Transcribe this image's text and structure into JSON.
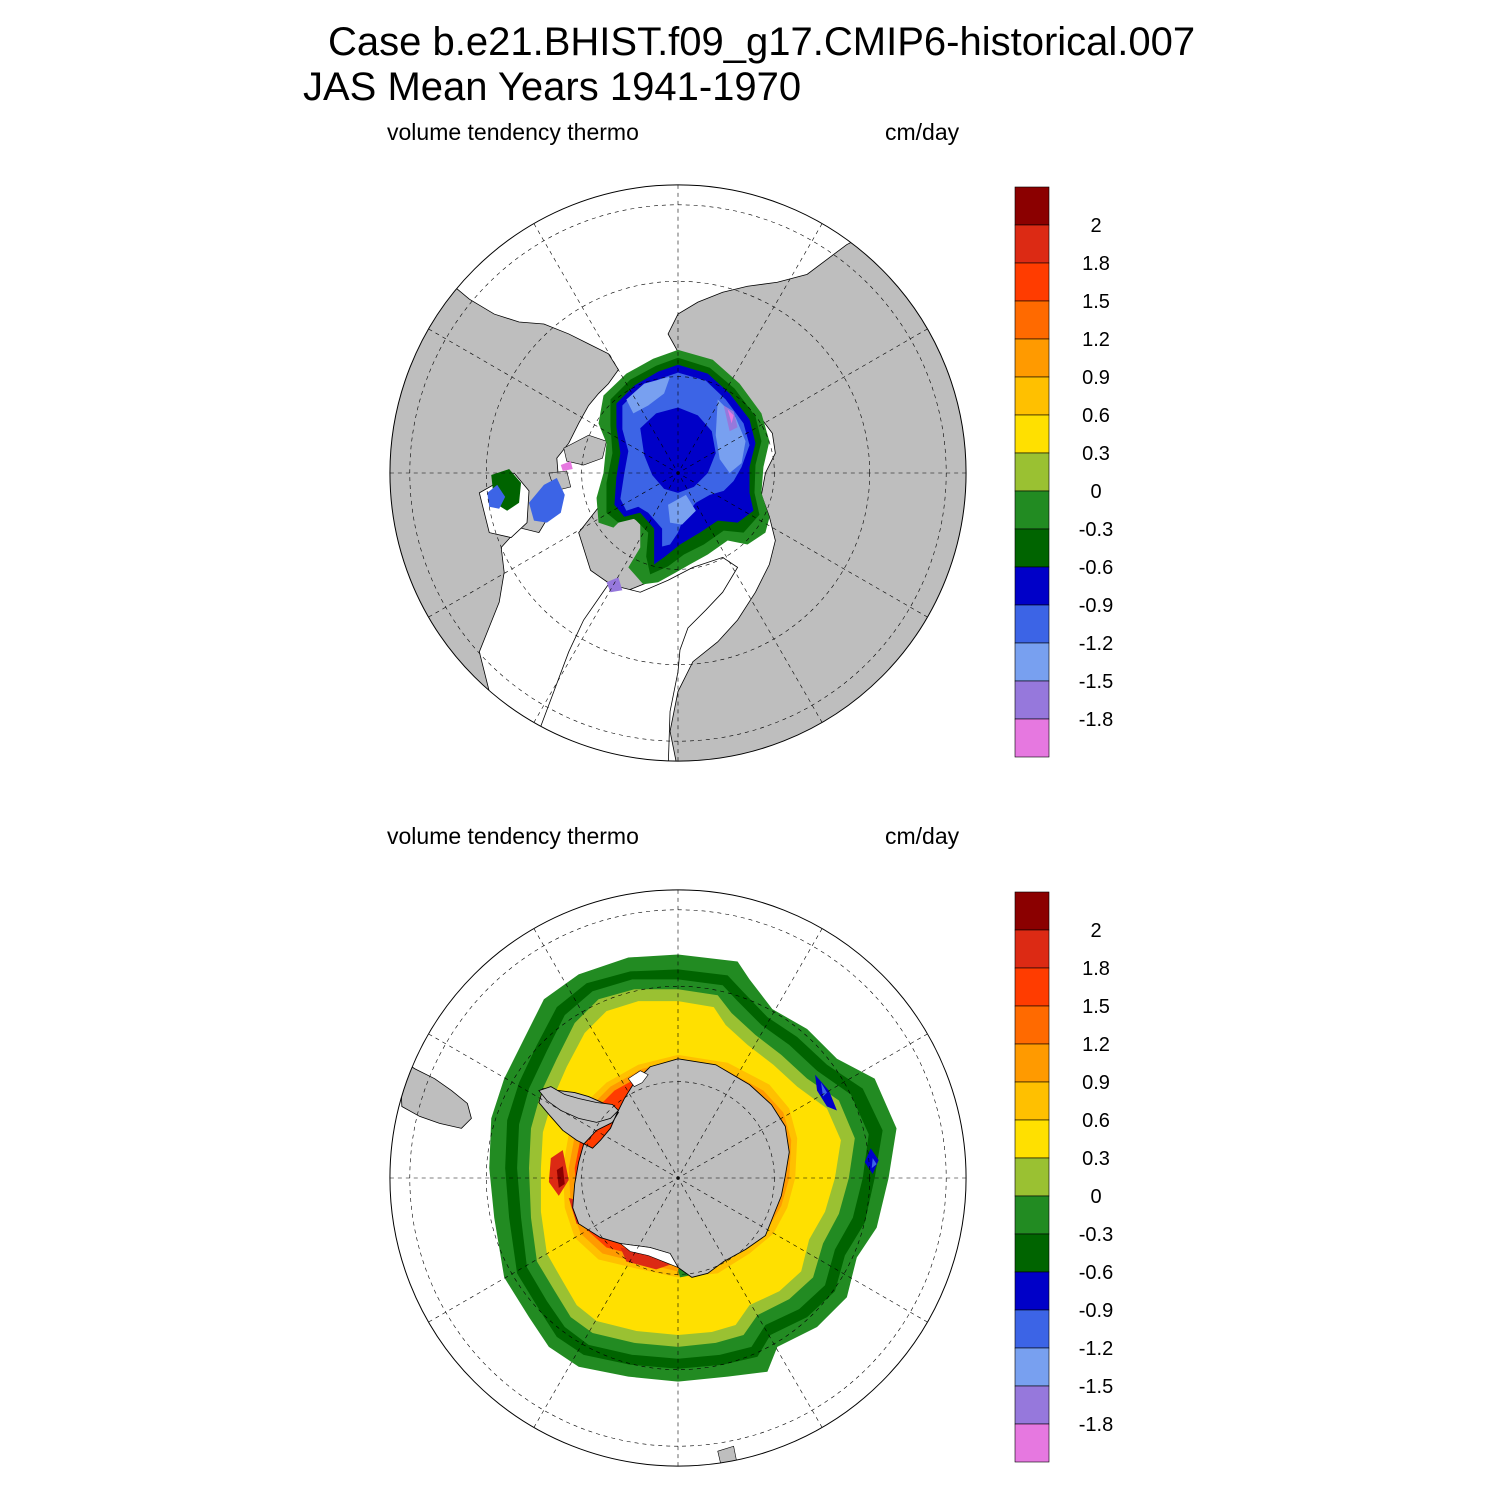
{
  "title": {
    "line1": "Case b.e21.BHIST.f09_g17.CMIP6-historical.007",
    "line2": "JAS Mean   Years 1941-1970"
  },
  "panels": [
    {
      "id": "nh",
      "left_label": "volume tendency thermo",
      "right_label": "cm/day"
    },
    {
      "id": "sh",
      "left_label": "volume tendency thermo",
      "right_label": "cm/day"
    }
  ],
  "colorbar": {
    "labels": [
      "2",
      "1.8",
      "1.5",
      "1.2",
      "0.9",
      "0.6",
      "0.3",
      "0",
      "-0.3",
      "-0.6",
      "-0.9",
      "-1.2",
      "-1.5",
      "-1.8"
    ],
    "colors": [
      "#8b0000",
      "#dc2a14",
      "#ff3c00",
      "#ff6a00",
      "#ff9a00",
      "#ffc000",
      "#ffe000",
      "#9ac132",
      "#228b22",
      "#006400",
      "#0000c8",
      "#3c64e6",
      "#78a0f0",
      "#9678dc",
      "#e678e0"
    ]
  },
  "colors": {
    "land": "#bebebe",
    "ocean_no_ice": "#ffffff",
    "coast": "#000000"
  }
}
